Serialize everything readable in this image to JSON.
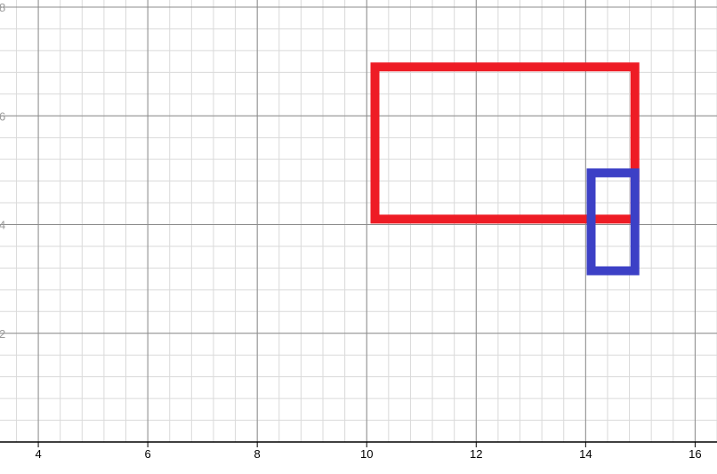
{
  "chart_data": {
    "type": "scatter",
    "title": "",
    "xlabel": "",
    "ylabel": "",
    "xlim": [
      3.3,
      16.4
    ],
    "ylim": [
      0,
      8.0
    ],
    "x_ticks": [
      4,
      6,
      8,
      10,
      12,
      14,
      16
    ],
    "y_ticks": [
      2,
      4,
      6,
      8
    ],
    "grid": true,
    "minor_grid_step": 0.4,
    "series": [
      {
        "color": "#ee1c25",
        "points": [
          [
            10.15,
            4.1
          ],
          [
            14.9,
            4.1
          ],
          [
            14.9,
            6.9
          ],
          [
            10.15,
            6.9
          ],
          [
            10.15,
            4.1
          ]
        ]
      },
      {
        "color": "#3c40c6",
        "points": [
          [
            14.1,
            3.15
          ],
          [
            14.9,
            3.15
          ],
          [
            14.9,
            4.95
          ],
          [
            14.1,
            4.95
          ],
          [
            14.1,
            3.15
          ]
        ]
      }
    ],
    "colors": {
      "major_grid": "#8c8c8c",
      "minor_grid": "#dadada",
      "axis": "#000000"
    }
  }
}
